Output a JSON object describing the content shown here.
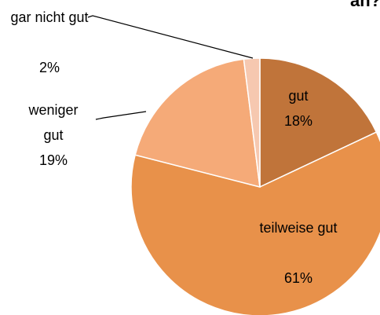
{
  "chart_data": {
    "type": "pie",
    "title": "an?",
    "categories": [
      "gut",
      "teilweise gut",
      "weniger gut",
      "gar nicht gut"
    ],
    "values": [
      18,
      61,
      19,
      2
    ],
    "value_labels": [
      "18%",
      "61%",
      "19%",
      "2%"
    ],
    "colors": [
      "#c0743a",
      "#e8914a",
      "#f5aa78",
      "#f6c8b0"
    ]
  }
}
